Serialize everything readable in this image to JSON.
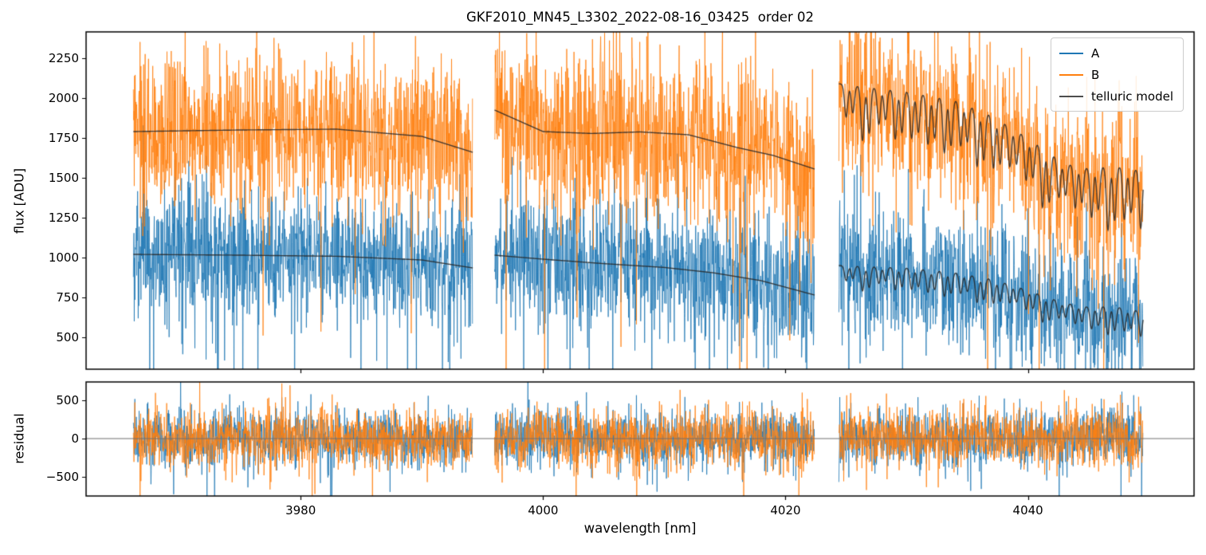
{
  "figure": {
    "title": "GKF2010_MN45_L3302_2022-08-16_03425  order 02",
    "background": "#ffffff",
    "spine_color": "#000000"
  },
  "chart_data": [
    {
      "type": "line",
      "name": "flux-panel",
      "ylabel": "flux [ADU]",
      "xlim": [
        3962.3,
        4053.7
      ],
      "ylim": [
        300,
        2415
      ],
      "yticks": [
        500,
        750,
        1000,
        1250,
        1500,
        1750,
        2000,
        2250
      ],
      "xticks": [
        3980,
        4000,
        4020,
        4040
      ],
      "x_tick_labels_visible": false,
      "grid": false,
      "legend": {
        "position": "upper right",
        "entries": [
          {
            "label": "A",
            "color": "#1f77b4"
          },
          {
            "label": "B",
            "color": "#ff7f0e"
          },
          {
            "label": "telluric model",
            "color": "#4d4d4d"
          }
        ]
      },
      "segments_nm": [
        [
          3966.2,
          3994.2
        ],
        [
          3996.0,
          4022.4
        ],
        [
          4024.4,
          4049.5
        ]
      ],
      "series": [
        {
          "name": "A",
          "color": "#1f77b4",
          "noise_std": 215,
          "continuum_points": [
            [
              3966.2,
              1020
            ],
            [
              3975,
              1015
            ],
            [
              3983,
              1008
            ],
            [
              3990,
              985
            ],
            [
              3994.2,
              935
            ],
            [
              3996.0,
              1015
            ],
            [
              4000,
              990
            ],
            [
              4005,
              962
            ],
            [
              4010,
              938
            ],
            [
              4014,
              905
            ],
            [
              4018,
              855
            ],
            [
              4022.4,
              765
            ],
            [
              4024.4,
              950
            ],
            [
              4030,
              935
            ],
            [
              4034,
              905
            ],
            [
              4037,
              865
            ],
            [
              4040,
              795
            ],
            [
              4043,
              715
            ],
            [
              4045,
              690
            ],
            [
              4047,
              695
            ],
            [
              4049.5,
              660
            ]
          ]
        },
        {
          "name": "B",
          "color": "#ff7f0e",
          "noise_std": 255,
          "continuum_points": [
            [
              3966.2,
              1790
            ],
            [
              3975,
              1800
            ],
            [
              3983,
              1805
            ],
            [
              3990,
              1760
            ],
            [
              3994.2,
              1660
            ],
            [
              3996.0,
              1925
            ],
            [
              4000,
              1790
            ],
            [
              4004,
              1778
            ],
            [
              4008,
              1788
            ],
            [
              4012,
              1770
            ],
            [
              4016,
              1690
            ],
            [
              4019,
              1640
            ],
            [
              4022.4,
              1555
            ],
            [
              4024.4,
              2090
            ],
            [
              4030,
              2040
            ],
            [
              4034,
              1985
            ],
            [
              4037,
              1890
            ],
            [
              4040,
              1750
            ],
            [
              4043,
              1590
            ],
            [
              4045,
              1560
            ],
            [
              4047,
              1575
            ],
            [
              4049.5,
              1545
            ]
          ]
        }
      ],
      "telluric_model": {
        "name": "telluric model",
        "color": "#4d4d4d",
        "smooth_in_segments": [
          0,
          1
        ],
        "comb_segment": 2,
        "dip_start_nm": 4025.0,
        "dip_spacing_nm": 1.35,
        "doublet_offset_nm": 0.55,
        "dip_sigma_nm": 0.13,
        "dip_depth_start": 0.13,
        "dip_depth_end": 0.22,
        "doublet_depth_ratio": 0.85
      }
    },
    {
      "type": "line",
      "name": "residual-panel",
      "ylabel": "residual",
      "xlabel": "wavelength [nm]",
      "xlim": [
        3962.3,
        4053.7
      ],
      "ylim": [
        -750,
        740
      ],
      "yticks": [
        -500,
        0,
        500
      ],
      "xticks": [
        3980,
        4000,
        4020,
        4040
      ],
      "x_tick_labels_visible": true,
      "grid": false,
      "zero_line": {
        "visible": true,
        "value": 0,
        "color": "#707070"
      },
      "segments_nm": [
        [
          3966.2,
          3994.2
        ],
        [
          3996.0,
          4022.4
        ],
        [
          4024.4,
          4049.5
        ]
      ],
      "series": [
        {
          "name": "A",
          "color": "#1f77b4",
          "noise_std": 185,
          "mean": 0
        },
        {
          "name": "B",
          "color": "#ff7f0e",
          "noise_std": 195,
          "mean": 0
        }
      ]
    }
  ]
}
